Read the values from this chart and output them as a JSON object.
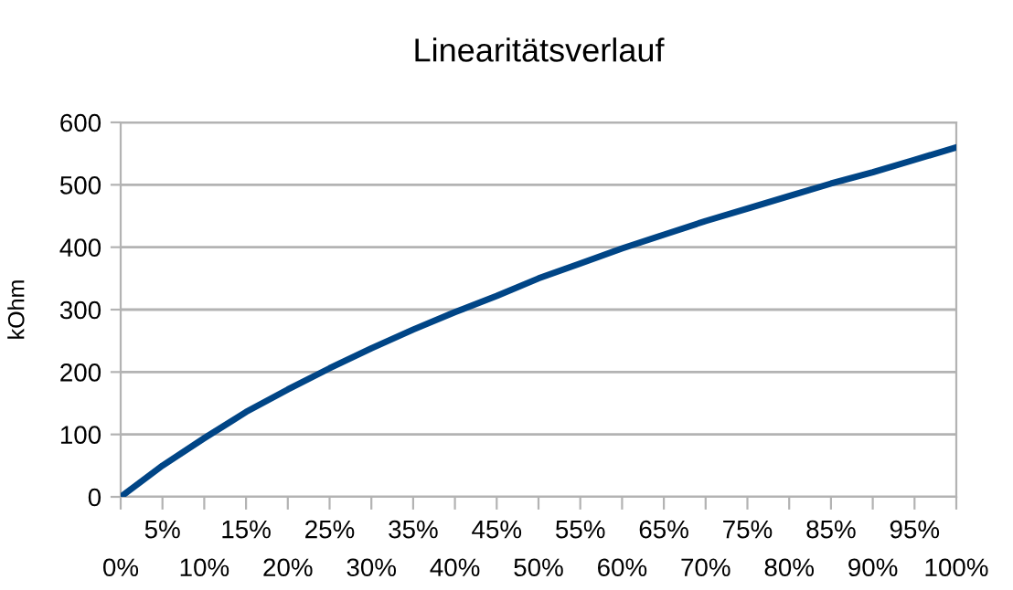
{
  "chart_data": {
    "type": "line",
    "title": "Linearitätsverlauf",
    "ylabel": "kOhm",
    "categories": [
      "0%",
      "5%",
      "10%",
      "15%",
      "20%",
      "25%",
      "30%",
      "35%",
      "40%",
      "45%",
      "50%",
      "55%",
      "60%",
      "65%",
      "70%",
      "75%",
      "80%",
      "85%",
      "90%",
      "95%",
      "100%"
    ],
    "series": [
      {
        "color": "#004586",
        "values": [
          0,
          50,
          94,
          136,
          172,
          206,
          238,
          268,
          296,
          322,
          350,
          374,
          398,
          420,
          442,
          462,
          482,
          502,
          520,
          540,
          560
        ]
      }
    ],
    "ylim": [
      0,
      600
    ],
    "yticks": [
      0,
      100,
      200,
      300,
      400,
      500,
      600
    ],
    "grid": "y",
    "marker": "none",
    "line_style": "solid"
  }
}
